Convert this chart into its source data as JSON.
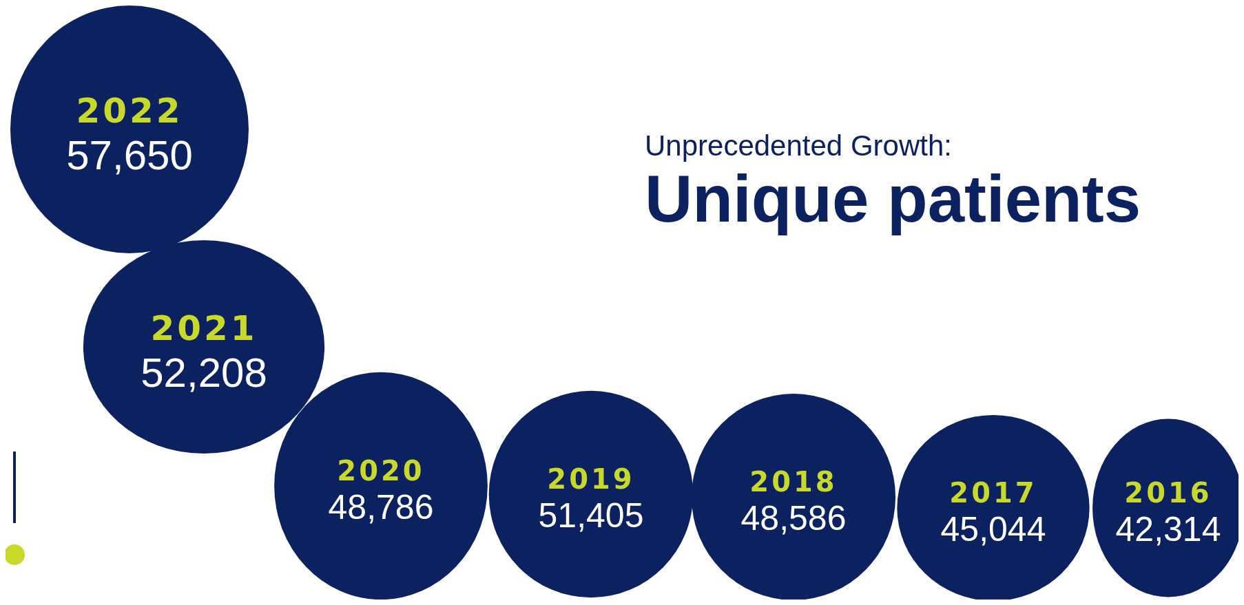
{
  "chart_data": {
    "type": "other",
    "subtitle": "Unprecedented Growth:",
    "title": "Unique patients",
    "categories": [
      "2022",
      "2021",
      "2020",
      "2019",
      "2018",
      "2017",
      "2016"
    ],
    "values": [
      57650,
      52208,
      48786,
      51405,
      48586,
      45044,
      42314
    ],
    "value_labels": [
      "57,650",
      "52,208",
      "48,786",
      "51,405",
      "48,586",
      "45,044",
      "42,314"
    ],
    "color": "#0c2260"
  }
}
